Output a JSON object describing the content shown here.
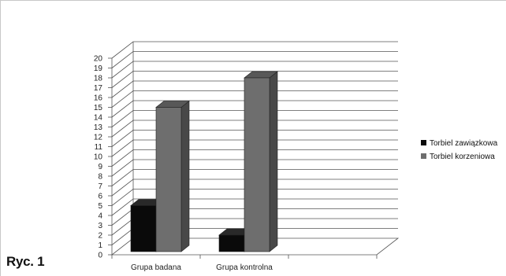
{
  "figure_label": "Ryc. 1",
  "chart_data": {
    "type": "bar",
    "categories": [
      "Grupa badana",
      "Grupa kontrolna",
      ""
    ],
    "series": [
      {
        "name": "Torbiel zawiązkowa",
        "values": [
          5,
          2,
          null
        ],
        "color": "#0a0a0a"
      },
      {
        "name": "Torbiel korzeniowa",
        "values": [
          15,
          18,
          null
        ],
        "color": "#6e6e6e"
      }
    ],
    "ylim": [
      0,
      20
    ],
    "yticks": [
      0,
      1,
      2,
      3,
      4,
      5,
      6,
      7,
      8,
      9,
      10,
      11,
      12,
      13,
      14,
      15,
      16,
      17,
      18,
      19,
      20
    ],
    "grid": true,
    "legend": "right",
    "style": "3d"
  }
}
